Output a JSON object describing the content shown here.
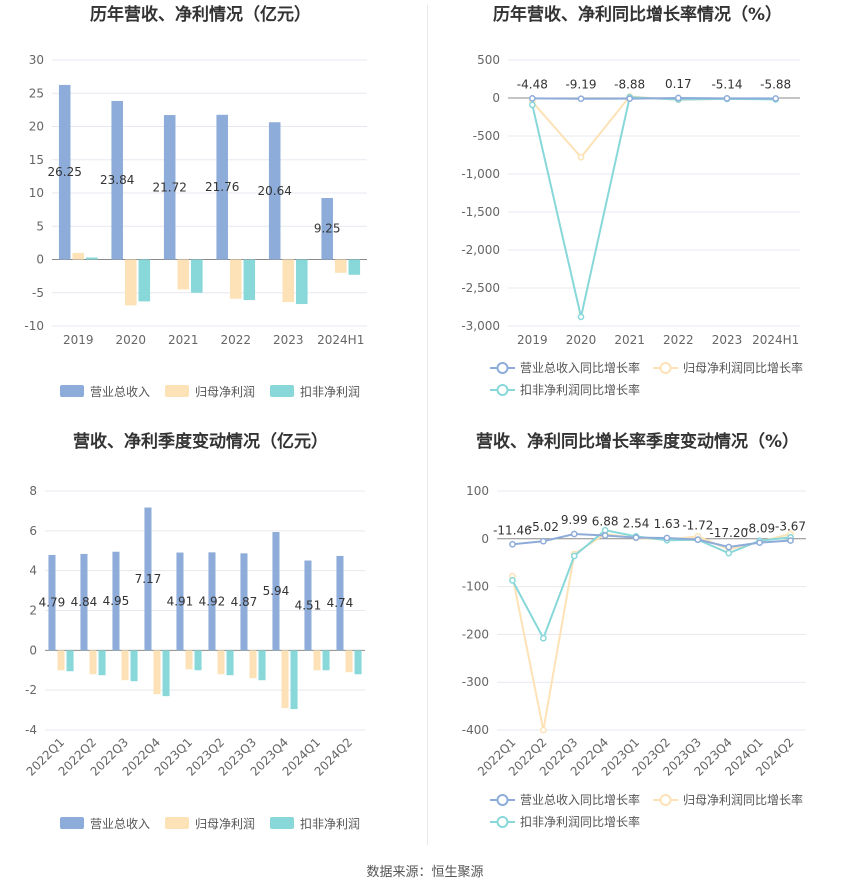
{
  "source_label": "数据来源：恒生聚源",
  "colors": {
    "revenue": "#8eacd9",
    "parent_np": "#fce2b6",
    "deducted_np": "#88d7d9",
    "grid": "#e6e8ef",
    "axis_text": "#666666",
    "title": "#333333"
  },
  "chart_data": [
    {
      "type": "bar",
      "title": "历年营收、净利情况（亿元）",
      "categories": [
        "2019",
        "2020",
        "2021",
        "2022",
        "2023",
        "2024H1"
      ],
      "ylim": [
        -10,
        30
      ],
      "yticks": [
        -10,
        -5,
        0,
        5,
        10,
        15,
        20,
        25,
        30
      ],
      "series": [
        {
          "name": "营业总收入",
          "values": [
            26.25,
            23.84,
            21.72,
            21.76,
            20.64,
            9.25
          ],
          "labels": [
            "26.25",
            "23.84",
            "21.72",
            "21.76",
            "20.64",
            "9.25"
          ]
        },
        {
          "name": "归母净利润",
          "values": [
            1.0,
            -6.9,
            -4.5,
            -5.9,
            -6.4,
            -2.0
          ]
        },
        {
          "name": "扣非净利润",
          "values": [
            0.3,
            -6.3,
            -5.0,
            -6.1,
            -6.7,
            -2.3
          ]
        }
      ],
      "legend": "bottom",
      "grid": true
    },
    {
      "type": "line",
      "title": "历年营收、净利同比增长率情况（%）",
      "categories": [
        "2019",
        "2020",
        "2021",
        "2022",
        "2023",
        "2024H1"
      ],
      "ylim": [
        -3000,
        500
      ],
      "yticks": [
        -3000,
        -2500,
        -2000,
        -1500,
        -1000,
        -500,
        0,
        500
      ],
      "ytick_labels": [
        "-3,000",
        "-2,500",
        "-2,000",
        "-1,500",
        "-1,000",
        "-500",
        "0",
        "500"
      ],
      "series": [
        {
          "name": "营业总收入同比增长率",
          "values": [
            -4.48,
            -9.19,
            -8.88,
            0.17,
            -5.14,
            -5.88
          ],
          "labels": [
            "-4.48",
            "-9.19",
            "-8.88",
            "0.17",
            "-5.14",
            "-5.88"
          ]
        },
        {
          "name": "归母净利润同比增长率",
          "values": [
            -50,
            -780,
            20,
            -25,
            -10,
            -15
          ]
        },
        {
          "name": "扣非净利润同比增长率",
          "values": [
            -90,
            -2880,
            10,
            -20,
            -12,
            -18
          ]
        }
      ],
      "legend": "bottom",
      "grid": true
    },
    {
      "type": "bar",
      "title": "营收、净利季度变动情况（亿元）",
      "categories": [
        "2022Q1",
        "2022Q2",
        "2022Q3",
        "2022Q4",
        "2023Q1",
        "2023Q2",
        "2023Q3",
        "2023Q4",
        "2024Q1",
        "2024Q2"
      ],
      "ylim": [
        -4,
        8
      ],
      "yticks": [
        -4,
        -2,
        0,
        2,
        4,
        6,
        8
      ],
      "series": [
        {
          "name": "营业总收入",
          "values": [
            4.79,
            4.84,
            4.95,
            7.17,
            4.91,
            4.92,
            4.87,
            5.94,
            4.51,
            4.74
          ],
          "labels": [
            "4.79",
            "4.84",
            "4.95",
            "7.17",
            "4.91",
            "4.92",
            "4.87",
            "5.94",
            "4.51",
            "4.74"
          ]
        },
        {
          "name": "归母净利润",
          "values": [
            -1.0,
            -1.2,
            -1.5,
            -2.2,
            -0.95,
            -1.2,
            -1.4,
            -2.9,
            -1.0,
            -1.1
          ]
        },
        {
          "name": "扣非净利润",
          "values": [
            -1.05,
            -1.25,
            -1.55,
            -2.3,
            -1.0,
            -1.25,
            -1.5,
            -2.95,
            -1.0,
            -1.2
          ]
        }
      ],
      "legend": "bottom",
      "grid": true
    },
    {
      "type": "line",
      "title": "营收、净利同比增长率季度变动情况（%）",
      "categories": [
        "2022Q1",
        "2022Q2",
        "2022Q3",
        "2022Q4",
        "2023Q1",
        "2023Q2",
        "2023Q3",
        "2023Q4",
        "2024Q1",
        "2024Q2"
      ],
      "ylim": [
        -400,
        100
      ],
      "yticks": [
        -400,
        -300,
        -200,
        -100,
        0,
        100
      ],
      "series": [
        {
          "name": "营业总收入同比增长率",
          "values": [
            -11.46,
            -5.02,
            9.99,
            6.88,
            2.54,
            1.63,
            -1.72,
            -17.2,
            -8.09,
            -3.67
          ],
          "labels": [
            "-11.46",
            "-5.02",
            "9.99",
            "6.88",
            "2.54",
            "1.63",
            "-1.72",
            "-17.20",
            "-8.09",
            "-3.67"
          ]
        },
        {
          "name": "归母净利润同比增长率",
          "values": [
            -78,
            -400,
            -32,
            10,
            2,
            -2,
            5,
            -22,
            -6,
            10
          ]
        },
        {
          "name": "扣非净利润同比增长率",
          "values": [
            -87,
            -208,
            -36,
            18,
            5,
            -3,
            -2,
            -30,
            -4,
            3
          ]
        }
      ],
      "legend": "bottom",
      "grid": true
    }
  ]
}
